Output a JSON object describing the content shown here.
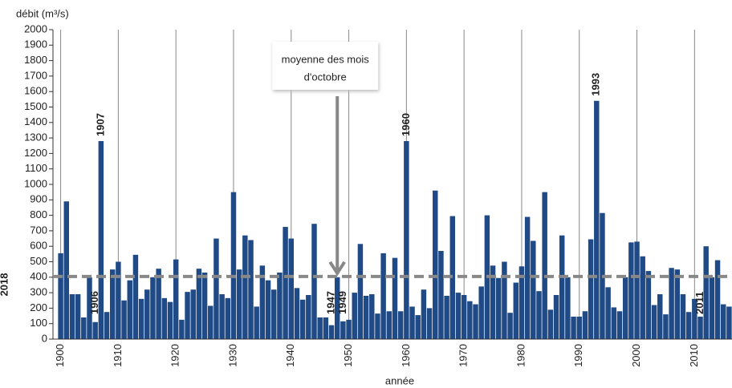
{
  "chart_data": {
    "type": "bar",
    "y_label": "débit (m³/s)",
    "x_label": "année",
    "color": "#1f4a86",
    "x": [
      1900,
      1901,
      1902,
      1903,
      1904,
      1905,
      1906,
      1907,
      1908,
      1909,
      1910,
      1911,
      1912,
      1913,
      1914,
      1915,
      1916,
      1917,
      1918,
      1919,
      1920,
      1921,
      1922,
      1923,
      1924,
      1925,
      1926,
      1927,
      1928,
      1929,
      1930,
      1931,
      1932,
      1933,
      1934,
      1935,
      1936,
      1937,
      1938,
      1939,
      1940,
      1941,
      1942,
      1943,
      1944,
      1945,
      1946,
      1947,
      1948,
      1949,
      1950,
      1951,
      1952,
      1953,
      1954,
      1955,
      1956,
      1957,
      1958,
      1959,
      1960,
      1961,
      1962,
      1963,
      1964,
      1965,
      1966,
      1967,
      1968,
      1969,
      1970,
      1971,
      1972,
      1973,
      1974,
      1975,
      1976,
      1977,
      1978,
      1979,
      1980,
      1981,
      1982,
      1983,
      1984,
      1985,
      1986,
      1987,
      1988,
      1989,
      1990,
      1991,
      1992,
      1993,
      1994,
      1995,
      1996,
      1997,
      1998,
      1999,
      2000,
      2001,
      2002,
      2003,
      2004,
      2005,
      2006,
      2007,
      2008,
      2009,
      2010,
      2011,
      2012,
      2013,
      2014,
      2015,
      2016
    ],
    "values": [
      555,
      890,
      290,
      290,
      140,
      400,
      110,
      1280,
      175,
      450,
      500,
      250,
      380,
      545,
      260,
      320,
      400,
      455,
      265,
      240,
      515,
      125,
      305,
      320,
      455,
      430,
      215,
      650,
      290,
      265,
      950,
      450,
      670,
      640,
      210,
      475,
      380,
      320,
      430,
      725,
      650,
      330,
      255,
      285,
      745,
      140,
      140,
      90,
      400,
      115,
      125,
      300,
      615,
      280,
      290,
      165,
      555,
      180,
      525,
      180,
      1280,
      210,
      155,
      320,
      200,
      960,
      570,
      280,
      795,
      300,
      285,
      245,
      225,
      340,
      800,
      475,
      395,
      500,
      170,
      365,
      470,
      790,
      635,
      310,
      950,
      190,
      285,
      670,
      400,
      145,
      145,
      180,
      645,
      1540,
      815,
      335,
      205,
      180,
      400,
      625,
      630,
      535,
      440,
      220,
      290,
      160,
      460,
      450,
      290,
      175,
      260,
      145,
      600,
      400,
      510,
      225,
      210
    ],
    "xlim": [
      1899.5,
      2016.5
    ],
    "xticks": [
      1900,
      1910,
      1920,
      1930,
      1940,
      1950,
      1960,
      1970,
      1980,
      1990,
      2000,
      2010
    ],
    "ylim": [
      0,
      2000
    ],
    "yticks": [
      0,
      100,
      200,
      300,
      400,
      500,
      600,
      700,
      800,
      900,
      1000,
      1100,
      1200,
      1300,
      1400,
      1500,
      1600,
      1700,
      1800,
      1900,
      2000
    ],
    "mean": 405,
    "mean_note": {
      "lines": [
        "moyenne des mois",
        "d'octobre"
      ],
      "x": 1948
    },
    "year_labels": [
      {
        "text": "1906",
        "x": 1906,
        "color": "#e00000"
      },
      {
        "text": "1907",
        "x": 1907,
        "color": "#1f5fc4"
      },
      {
        "text": "1947",
        "x": 1947,
        "color": "#e00000"
      },
      {
        "text": "1949",
        "x": 1949,
        "color": "#e00000"
      },
      {
        "text": "1960",
        "x": 1960,
        "color": "#1f5fc4"
      },
      {
        "text": "1993",
        "x": 1993,
        "color": "#1f5fc4"
      },
      {
        "text": "2011",
        "x": 2011,
        "color": "#000000"
      }
    ],
    "edge_label": "2018"
  }
}
